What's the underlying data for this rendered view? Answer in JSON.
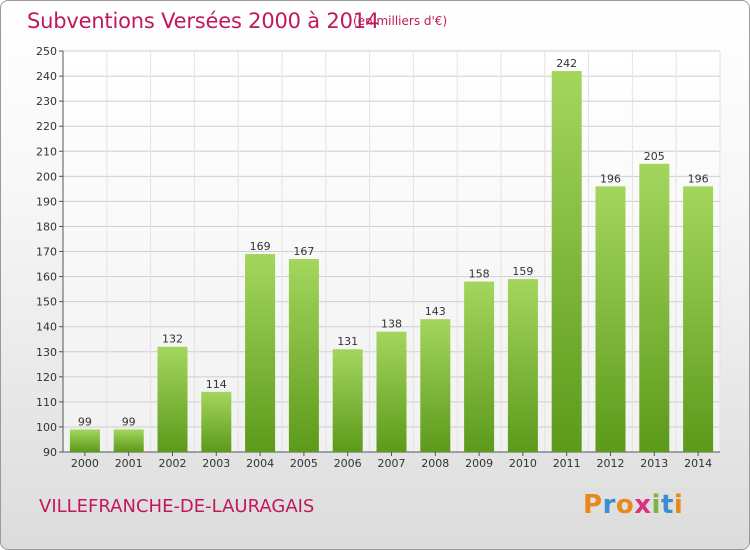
{
  "header": {
    "title": "Subventions Versées 2000 à 2014",
    "subtitle": "(en milliers d'€)"
  },
  "footer": {
    "city": "VILLEFRANCHE-DE-LAURAGAIS",
    "logo": {
      "text": "Proxiti",
      "letter_colors": [
        "#e8891d",
        "#3b8ed0",
        "#e8891d",
        "#d63384",
        "#7cb342",
        "#3b8ed0",
        "#e8891d"
      ]
    }
  },
  "chart_data": {
    "type": "bar",
    "title": "Subventions Versées 2000 à 2014",
    "subtitle": "(en milliers d'€)",
    "categories": [
      "2000",
      "2001",
      "2002",
      "2003",
      "2004",
      "2005",
      "2006",
      "2007",
      "2008",
      "2009",
      "2010",
      "2011",
      "2012",
      "2013",
      "2014"
    ],
    "values": [
      99,
      99,
      132,
      114,
      169,
      167,
      131,
      138,
      143,
      158,
      159,
      242,
      196,
      205,
      196
    ],
    "ylim": [
      90,
      250
    ],
    "yticks": [
      90,
      100,
      110,
      120,
      130,
      140,
      150,
      160,
      170,
      180,
      190,
      200,
      210,
      220,
      230,
      240,
      250
    ],
    "grid": true,
    "data_labels": true,
    "bar_color_top": "#a4d65e",
    "bar_color_bottom": "#5c9a1b",
    "title_color": "#c2185b"
  }
}
